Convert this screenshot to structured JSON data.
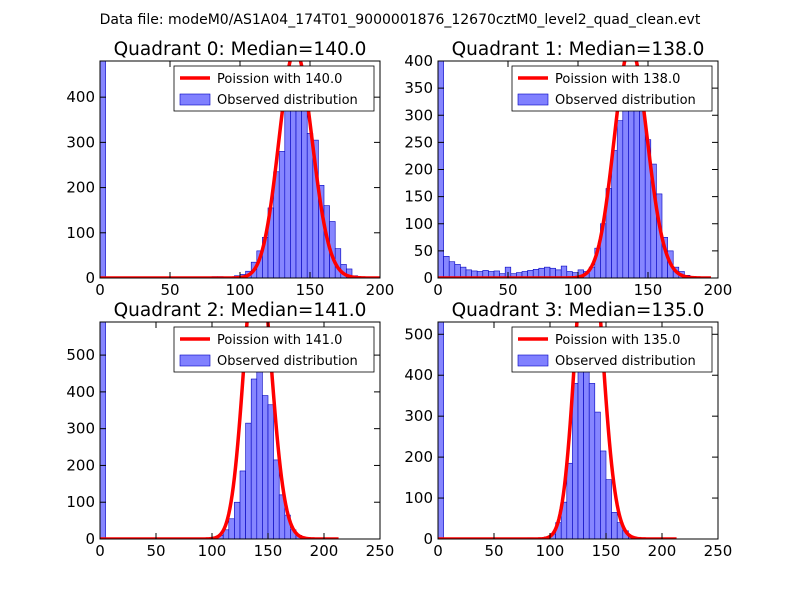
{
  "suptitle": "Data file: modeM0/AS1A04_174T01_9000001876_12670cztM0_level2_quad_clean.evt",
  "colors": {
    "hist_fill": "#8080ff",
    "hist_edge": "#0000bf",
    "curve": "#ff0000",
    "axis": "#000000"
  },
  "legend": {
    "position": "upper-right"
  },
  "chart_data": [
    {
      "type": "bar",
      "title": "Quadrant 0: Median=140.0",
      "legend": [
        "Poission with 140.0",
        "Observed distribution"
      ],
      "xlim": [
        0,
        200
      ],
      "ylim": [
        0,
        480
      ],
      "xticks": [
        0,
        50,
        100,
        150,
        200
      ],
      "yticks": [
        0,
        100,
        200,
        300,
        400
      ],
      "hist": {
        "bin_width": 4,
        "bins": [
          {
            "x": 0,
            "v": 480
          },
          {
            "x": 80,
            "v": 3
          },
          {
            "x": 84,
            "v": 3
          },
          {
            "x": 96,
            "v": 5
          },
          {
            "x": 100,
            "v": 8
          },
          {
            "x": 104,
            "v": 15
          },
          {
            "x": 108,
            "v": 35
          },
          {
            "x": 112,
            "v": 60
          },
          {
            "x": 116,
            "v": 90
          },
          {
            "x": 120,
            "v": 155
          },
          {
            "x": 124,
            "v": 235
          },
          {
            "x": 128,
            "v": 280
          },
          {
            "x": 132,
            "v": 375
          },
          {
            "x": 136,
            "v": 440
          },
          {
            "x": 140,
            "v": 455
          },
          {
            "x": 144,
            "v": 410
          },
          {
            "x": 148,
            "v": 320
          },
          {
            "x": 152,
            "v": 305
          },
          {
            "x": 156,
            "v": 205
          },
          {
            "x": 160,
            "v": 160
          },
          {
            "x": 164,
            "v": 125
          },
          {
            "x": 168,
            "v": 65
          },
          {
            "x": 172,
            "v": 30
          },
          {
            "x": 176,
            "v": 20
          },
          {
            "x": 180,
            "v": 5
          }
        ]
      },
      "poisson": {
        "mean": 140.0,
        "total": 3740,
        "bin_width": 4,
        "x_range": [
          0,
          200
        ]
      }
    },
    {
      "type": "bar",
      "title": "Quadrant 1: Median=138.0",
      "legend": [
        "Poission with 138.0",
        "Observed distribution"
      ],
      "xlim": [
        0,
        200
      ],
      "ylim": [
        0,
        400
      ],
      "xticks": [
        0,
        50,
        100,
        150,
        200
      ],
      "yticks": [
        0,
        50,
        100,
        150,
        200,
        250,
        300,
        350,
        400
      ],
      "hist": {
        "bin_width": 4,
        "bins": [
          {
            "x": 0,
            "v": 400
          },
          {
            "x": 4,
            "v": 40
          },
          {
            "x": 8,
            "v": 30
          },
          {
            "x": 12,
            "v": 25
          },
          {
            "x": 16,
            "v": 20
          },
          {
            "x": 20,
            "v": 15
          },
          {
            "x": 24,
            "v": 13
          },
          {
            "x": 28,
            "v": 12
          },
          {
            "x": 32,
            "v": 14
          },
          {
            "x": 36,
            "v": 12
          },
          {
            "x": 40,
            "v": 13
          },
          {
            "x": 44,
            "v": 8
          },
          {
            "x": 48,
            "v": 20
          },
          {
            "x": 52,
            "v": 8
          },
          {
            "x": 56,
            "v": 10
          },
          {
            "x": 60,
            "v": 12
          },
          {
            "x": 64,
            "v": 14
          },
          {
            "x": 68,
            "v": 16
          },
          {
            "x": 72,
            "v": 18
          },
          {
            "x": 76,
            "v": 20
          },
          {
            "x": 80,
            "v": 18
          },
          {
            "x": 84,
            "v": 15
          },
          {
            "x": 88,
            "v": 22
          },
          {
            "x": 92,
            "v": 12
          },
          {
            "x": 96,
            "v": 10
          },
          {
            "x": 100,
            "v": 15
          },
          {
            "x": 104,
            "v": 12
          },
          {
            "x": 108,
            "v": 20
          },
          {
            "x": 112,
            "v": 55
          },
          {
            "x": 116,
            "v": 100
          },
          {
            "x": 120,
            "v": 165
          },
          {
            "x": 124,
            "v": 235
          },
          {
            "x": 128,
            "v": 290
          },
          {
            "x": 132,
            "v": 365
          },
          {
            "x": 136,
            "v": 350
          },
          {
            "x": 140,
            "v": 330
          },
          {
            "x": 144,
            "v": 310
          },
          {
            "x": 148,
            "v": 255
          },
          {
            "x": 152,
            "v": 210
          },
          {
            "x": 156,
            "v": 155
          },
          {
            "x": 160,
            "v": 75
          },
          {
            "x": 164,
            "v": 50
          },
          {
            "x": 168,
            "v": 20
          },
          {
            "x": 172,
            "v": 12
          },
          {
            "x": 176,
            "v": 5
          }
        ]
      },
      "poisson": {
        "mean": 138.0,
        "total": 3135,
        "bin_width": 4,
        "x_range": [
          0,
          195
        ]
      }
    },
    {
      "type": "bar",
      "title": "Quadrant 2: Median=141.0",
      "legend": [
        "Poission with 141.0",
        "Observed distribution"
      ],
      "xlim": [
        0,
        250
      ],
      "ylim": [
        0,
        590
      ],
      "xticks": [
        0,
        50,
        100,
        150,
        200,
        250
      ],
      "yticks": [
        0,
        100,
        200,
        300,
        400,
        500
      ],
      "hist": {
        "bin_width": 5,
        "bins": [
          {
            "x": 0,
            "v": 590
          },
          {
            "x": 85,
            "v": 3
          },
          {
            "x": 95,
            "v": 3
          },
          {
            "x": 100,
            "v": 5
          },
          {
            "x": 105,
            "v": 10
          },
          {
            "x": 110,
            "v": 25
          },
          {
            "x": 115,
            "v": 55
          },
          {
            "x": 120,
            "v": 100
          },
          {
            "x": 125,
            "v": 185
          },
          {
            "x": 130,
            "v": 315
          },
          {
            "x": 135,
            "v": 435
          },
          {
            "x": 140,
            "v": 565
          },
          {
            "x": 145,
            "v": 390
          },
          {
            "x": 150,
            "v": 365
          },
          {
            "x": 155,
            "v": 215
          },
          {
            "x": 160,
            "v": 120
          },
          {
            "x": 165,
            "v": 65
          },
          {
            "x": 170,
            "v": 25
          },
          {
            "x": 175,
            "v": 10
          }
        ]
      },
      "poisson": {
        "mean": 141.0,
        "total": 4780,
        "bin_width": 5,
        "x_range": [
          0,
          213
        ]
      }
    },
    {
      "type": "bar",
      "title": "Quadrant 3: Median=135.0",
      "legend": [
        "Poission with 135.0",
        "Observed distribution"
      ],
      "xlim": [
        0,
        250
      ],
      "ylim": [
        0,
        530
      ],
      "xticks": [
        0,
        50,
        100,
        150,
        200,
        250
      ],
      "yticks": [
        0,
        100,
        200,
        300,
        400,
        500
      ],
      "hist": {
        "bin_width": 5,
        "bins": [
          {
            "x": 0,
            "v": 530
          },
          {
            "x": 80,
            "v": 3
          },
          {
            "x": 90,
            "v": 3
          },
          {
            "x": 95,
            "v": 5
          },
          {
            "x": 100,
            "v": 12
          },
          {
            "x": 105,
            "v": 40
          },
          {
            "x": 110,
            "v": 90
          },
          {
            "x": 115,
            "v": 185
          },
          {
            "x": 120,
            "v": 380
          },
          {
            "x": 125,
            "v": 445
          },
          {
            "x": 130,
            "v": 510
          },
          {
            "x": 135,
            "v": 380
          },
          {
            "x": 140,
            "v": 310
          },
          {
            "x": 145,
            "v": 215
          },
          {
            "x": 150,
            "v": 145
          },
          {
            "x": 155,
            "v": 65
          },
          {
            "x": 160,
            "v": 40
          },
          {
            "x": 165,
            "v": 20
          },
          {
            "x": 170,
            "v": 5
          }
        ]
      },
      "poisson": {
        "mean": 135.0,
        "total": 4680,
        "bin_width": 5,
        "x_range": [
          0,
          213
        ]
      }
    }
  ]
}
